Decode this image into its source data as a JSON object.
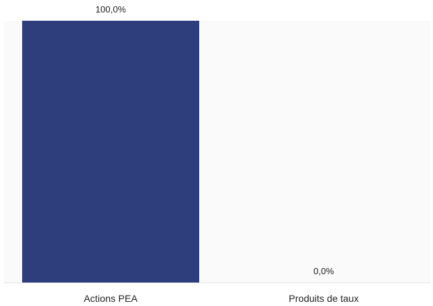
{
  "chart_data": {
    "type": "bar",
    "categories": [
      "Actions PEA",
      "Produits de taux"
    ],
    "values": [
      100.0,
      0.0
    ],
    "data_labels": [
      "100,0%",
      "0,0%"
    ],
    "title": "",
    "xlabel": "",
    "ylabel": "",
    "ylim": [
      0,
      100
    ],
    "grid": false,
    "legend": "none",
    "colors": {
      "bar": "#2e3d7c",
      "background": "#ffffff",
      "panel": "#fafafa",
      "baseline": "#e4e4e4"
    }
  }
}
